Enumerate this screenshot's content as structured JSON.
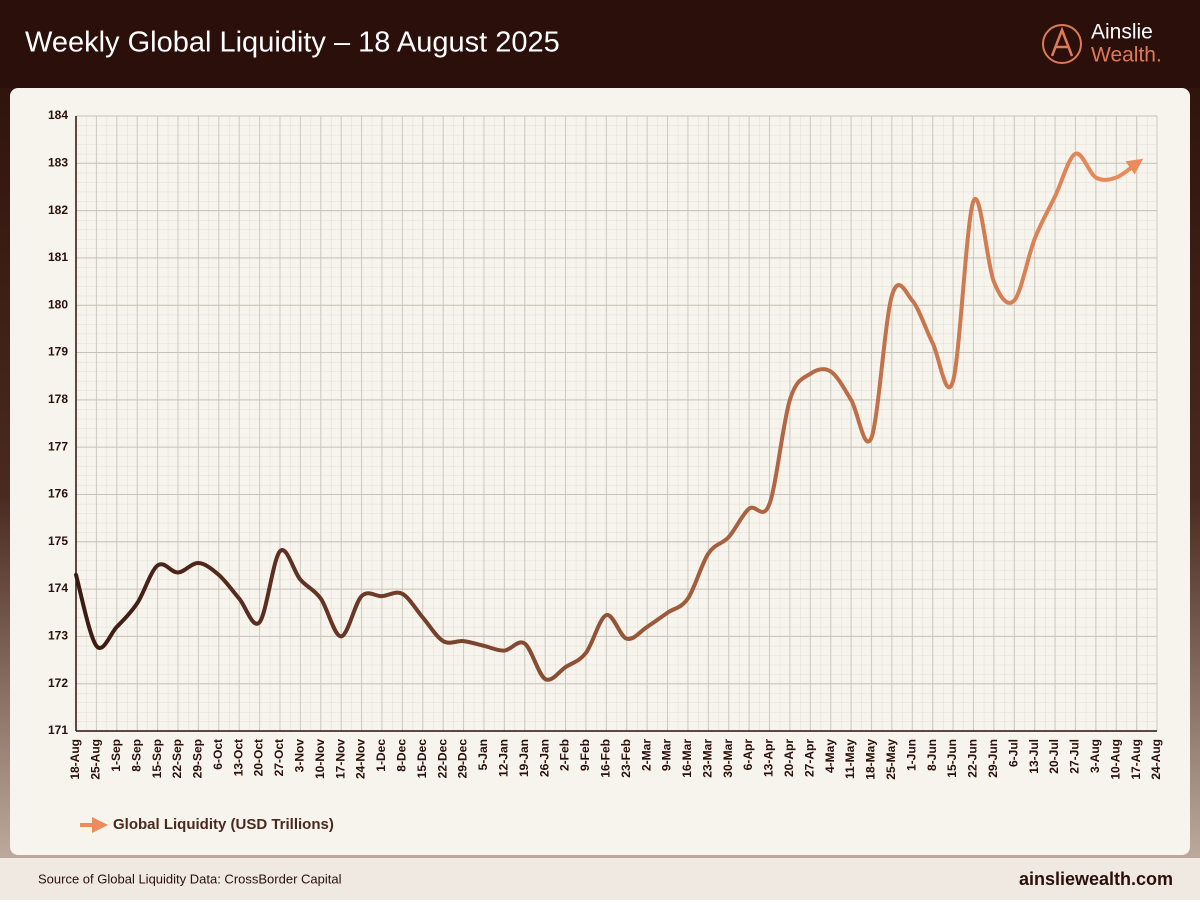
{
  "header": {
    "title": "Weekly Global Liquidity – 18 August 2025",
    "brand": [
      "Ainslie",
      "Wealth."
    ]
  },
  "chart_data": {
    "type": "line",
    "categories": [
      "18-Aug",
      "25-Aug",
      "1-Sep",
      "8-Sep",
      "15-Sep",
      "22-Sep",
      "29-Sep",
      "6-Oct",
      "13-Oct",
      "20-Oct",
      "27-Oct",
      "3-Nov",
      "10-Nov",
      "17-Nov",
      "24-Nov",
      "1-Dec",
      "8-Dec",
      "15-Dec",
      "22-Dec",
      "29-Dec",
      "5-Jan",
      "12-Jan",
      "19-Jan",
      "26-Jan",
      "2-Feb",
      "9-Feb",
      "16-Feb",
      "23-Feb",
      "2-Mar",
      "9-Mar",
      "16-Mar",
      "23-Mar",
      "30-Mar",
      "6-Apr",
      "13-Apr",
      "20-Apr",
      "27-Apr",
      "4-May",
      "11-May",
      "18-May",
      "25-May",
      "1-Jun",
      "8-Jun",
      "15-Jun",
      "22-Jun",
      "29-Jun",
      "6-Jul",
      "13-Jul",
      "20-Jul",
      "27-Jul",
      "3-Aug",
      "10-Aug",
      "17-Aug",
      "24-Aug"
    ],
    "series": [
      {
        "name": "Global Liquidity (USD Trillions)",
        "color": [
          "#3a1a12",
          "#ec8c5d"
        ],
        "values": [
          174.3,
          172.8,
          173.2,
          173.7,
          174.5,
          174.35,
          174.55,
          174.3,
          173.8,
          173.3,
          174.8,
          174.2,
          173.8,
          173.0,
          173.85,
          173.85,
          173.9,
          173.4,
          172.9,
          172.9,
          172.8,
          172.7,
          172.85,
          172.1,
          172.35,
          172.65,
          173.45,
          172.95,
          173.2,
          173.5,
          173.8,
          174.75,
          175.1,
          175.7,
          175.8,
          178.0,
          178.55,
          178.6,
          178.0,
          177.2,
          180.2,
          180.1,
          179.2,
          178.4,
          182.2,
          180.5,
          180.1,
          181.4,
          182.3,
          183.2,
          182.7,
          182.7,
          183.0,
          null
        ]
      }
    ],
    "ylim": [
      171,
      184
    ],
    "yticks": [
      171,
      172,
      173,
      174,
      175,
      176,
      177,
      178,
      179,
      180,
      181,
      182,
      183,
      184
    ],
    "grid": true
  },
  "footer": {
    "source": "Source of Global Liquidity Data: CrossBorder Capital",
    "website": "ainsliewealth.com"
  }
}
